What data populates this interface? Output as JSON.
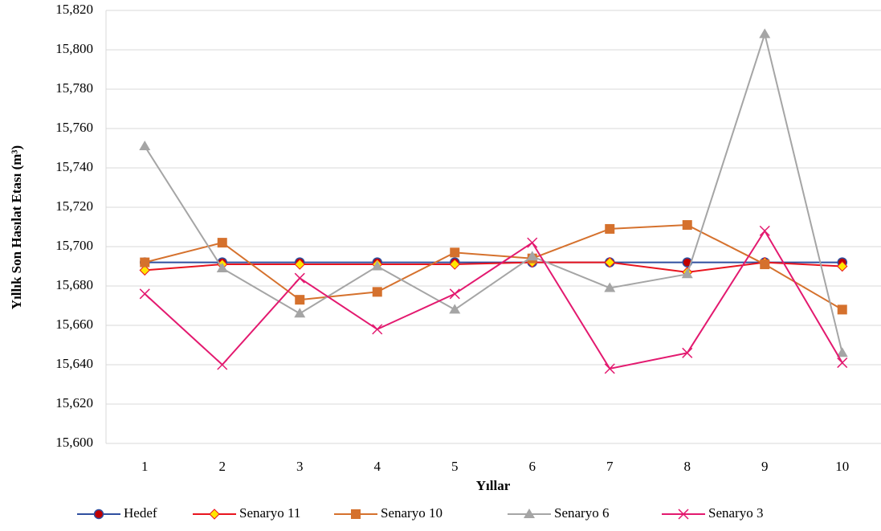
{
  "chart_data": {
    "type": "line",
    "x_label": "Yıllar",
    "y_label": "Yıllık Son Hasılat Etası (m³)",
    "categories": [
      "1",
      "2",
      "3",
      "4",
      "5",
      "6",
      "7",
      "8",
      "9",
      "10"
    ],
    "ylim": [
      15600,
      15820
    ],
    "yticks": [
      {
        "value": 15600,
        "label": "15,600"
      },
      {
        "value": 15620,
        "label": "15,620"
      },
      {
        "value": 15640,
        "label": "15,640"
      },
      {
        "value": 15660,
        "label": "15,660"
      },
      {
        "value": 15680,
        "label": "15,680"
      },
      {
        "value": 15700,
        "label": "15,700"
      },
      {
        "value": 15720,
        "label": "15,720"
      },
      {
        "value": 15740,
        "label": "15,740"
      },
      {
        "value": 15760,
        "label": "15,760"
      },
      {
        "value": 15780,
        "label": "15,780"
      },
      {
        "value": 15800,
        "label": "15,800"
      },
      {
        "value": 15820,
        "label": "15,820"
      }
    ],
    "grid": true,
    "legend": "bottom",
    "series": [
      {
        "name": "Hedef",
        "color": "#2f4f9f",
        "marker": "circle",
        "marker_color": "#c00000",
        "values": [
          15692,
          15692,
          15692,
          15692,
          15692,
          15692,
          15692,
          15692,
          15692,
          15692
        ]
      },
      {
        "name": "Senaryo 11",
        "color": "#e8141e",
        "marker": "diamond",
        "marker_color": "#ffe600",
        "values": [
          15688,
          15691,
          15691,
          15691,
          15691,
          15692,
          15692,
          15687,
          15692,
          15690
        ]
      },
      {
        "name": "Senaryo 10",
        "color": "#d5712d",
        "marker": "square",
        "marker_color": "#d5712d",
        "values": [
          15692,
          15702,
          15673,
          15677,
          15697,
          15694,
          15709,
          15711,
          15691,
          15668
        ]
      },
      {
        "name": "Senaryo 6",
        "color": "#a5a5a5",
        "marker": "triangle",
        "marker_color": "#a5a5a5",
        "values": [
          15751,
          15689,
          15666,
          15690,
          15668,
          15695,
          15679,
          15686,
          15808,
          15646
        ]
      },
      {
        "name": "Senaryo 3",
        "color": "#e3196f",
        "marker": "x",
        "marker_color": "#e3196f",
        "values": [
          15676,
          15640,
          15684,
          15658,
          15676,
          15702,
          15638,
          15646,
          15708,
          15641
        ]
      }
    ]
  }
}
